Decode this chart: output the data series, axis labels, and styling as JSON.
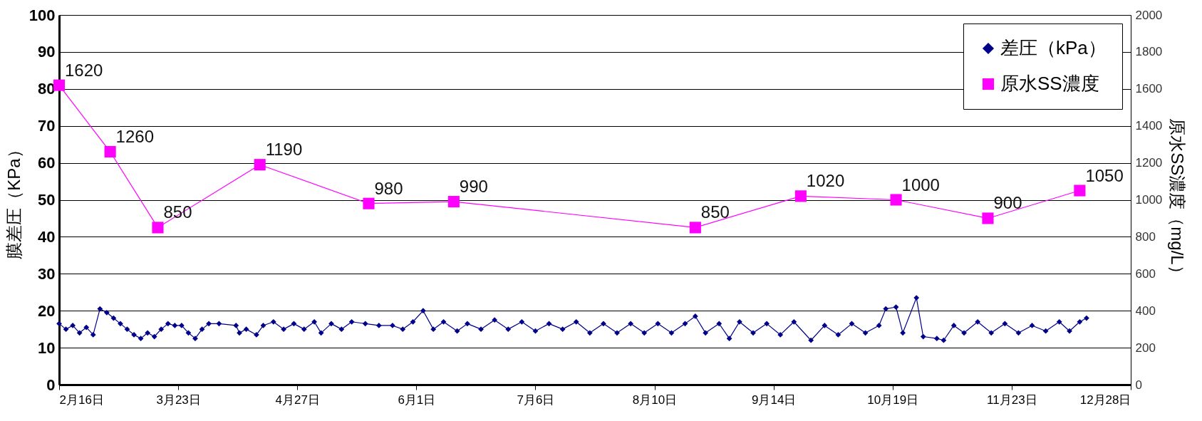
{
  "chart_data": {
    "type": "line",
    "xlabel": null,
    "ylabel": "膜差圧（KPa）",
    "y2label": "原水SS濃度（mg/L）",
    "xlim": [
      "--02-16",
      "--12-28"
    ],
    "xticks": [
      {
        "value": "--02-16",
        "label": "2月16日"
      },
      {
        "value": "--03-23",
        "label": "3月23日"
      },
      {
        "value": "--04-27",
        "label": "4月27日"
      },
      {
        "value": "--06-01",
        "label": "6月1日"
      },
      {
        "value": "--07-06",
        "label": "7月6日"
      },
      {
        "value": "--08-10",
        "label": "8月10日"
      },
      {
        "value": "--09-14",
        "label": "9月14日"
      },
      {
        "value": "--10-19",
        "label": "10月19日"
      },
      {
        "value": "--11-23",
        "label": "11月23日"
      },
      {
        "value": "--12-28",
        "label": "12月28日"
      }
    ],
    "ylim": [
      0,
      100
    ],
    "yticks": [
      0,
      10,
      20,
      30,
      40,
      50,
      60,
      70,
      80,
      90,
      100
    ],
    "y2lim": [
      0,
      2000
    ],
    "y2ticks": [
      0,
      200,
      400,
      600,
      800,
      1000,
      1200,
      1400,
      1600,
      1800,
      2000
    ],
    "grid": "y",
    "legend": "top right",
    "series": [
      {
        "name": "差圧（kPa）",
        "color": "#00008b",
        "marker": "diamond",
        "axis": "y",
        "x": [
          "--02-16",
          "--02-18",
          "--02-20",
          "--02-22",
          "--02-24",
          "--02-26",
          "--02-28",
          "--03-02",
          "--03-04",
          "--03-06",
          "--03-08",
          "--03-10",
          "--03-12",
          "--03-14",
          "--03-16",
          "--03-18",
          "--03-20",
          "--03-22",
          "--03-24",
          "--03-26",
          "--03-28",
          "--03-30",
          "--04-01",
          "--04-04",
          "--04-09",
          "--04-10",
          "--04-12",
          "--04-15",
          "--04-17",
          "--04-20",
          "--04-23",
          "--04-26",
          "--04-29",
          "--05-02",
          "--05-04",
          "--05-07",
          "--05-10",
          "--05-13",
          "--05-17",
          "--05-21",
          "--05-25",
          "--05-28",
          "--05-31",
          "--06-03",
          "--06-06",
          "--06-09",
          "--06-13",
          "--06-16",
          "--06-20",
          "--06-24",
          "--06-28",
          "--07-02",
          "--07-06",
          "--07-10",
          "--07-14",
          "--07-18",
          "--07-22",
          "--07-26",
          "--07-30",
          "--08-03",
          "--08-07",
          "--08-11",
          "--08-15",
          "--08-19",
          "--08-22",
          "--08-25",
          "--08-29",
          "--09-01",
          "--09-04",
          "--09-08",
          "--09-12",
          "--09-16",
          "--09-20",
          "--09-25",
          "--09-29",
          "--10-03",
          "--10-07",
          "--10-11",
          "--10-15",
          "--10-17",
          "--10-20",
          "--10-22",
          "--10-26",
          "--10-28",
          "--11-01",
          "--11-03",
          "--11-06",
          "--11-09",
          "--11-13",
          "--11-17",
          "--11-21",
          "--11-25",
          "--11-29",
          "--12-03",
          "--12-07",
          "--12-10",
          "--12-13",
          "--12-15"
        ],
        "values": [
          16.5,
          15,
          16,
          14,
          15.5,
          13.5,
          20.5,
          19.5,
          18,
          16.5,
          15,
          13.5,
          12.5,
          14,
          13,
          15,
          16.5,
          16,
          16,
          14,
          12.5,
          15,
          16.5,
          16.5,
          16,
          14,
          15,
          13.5,
          16,
          17,
          15,
          16.5,
          15,
          17,
          14,
          16.5,
          15,
          17,
          16.5,
          16,
          16,
          15,
          17,
          20,
          15,
          17,
          14.5,
          16.5,
          15,
          17.5,
          15,
          17,
          14.5,
          16.5,
          15,
          17,
          14,
          16.5,
          14,
          16.5,
          14,
          16.5,
          14,
          16.5,
          18.5,
          14,
          16.5,
          12.5,
          17,
          14,
          16.5,
          13.5,
          17,
          12,
          16,
          13.5,
          16.5,
          14,
          16,
          20.5,
          21,
          14,
          23.5,
          13,
          12.5,
          12,
          16,
          14,
          17,
          14,
          16.5,
          14,
          16,
          14.5,
          17,
          14.5,
          17,
          18
        ]
      },
      {
        "name": "原水SS濃度",
        "color": "#ff00ff",
        "marker": "square",
        "axis": "y2",
        "x": [
          "--02-16",
          "--03-03",
          "--03-17",
          "--04-16",
          "--05-18",
          "--06-12",
          "--08-22",
          "--09-22",
          "--10-20",
          "--11-16",
          "--12-13"
        ],
        "values": [
          1620,
          1260,
          850,
          1190,
          980,
          990,
          850,
          1020,
          1000,
          900,
          1050
        ],
        "data_labels": true
      }
    ]
  }
}
